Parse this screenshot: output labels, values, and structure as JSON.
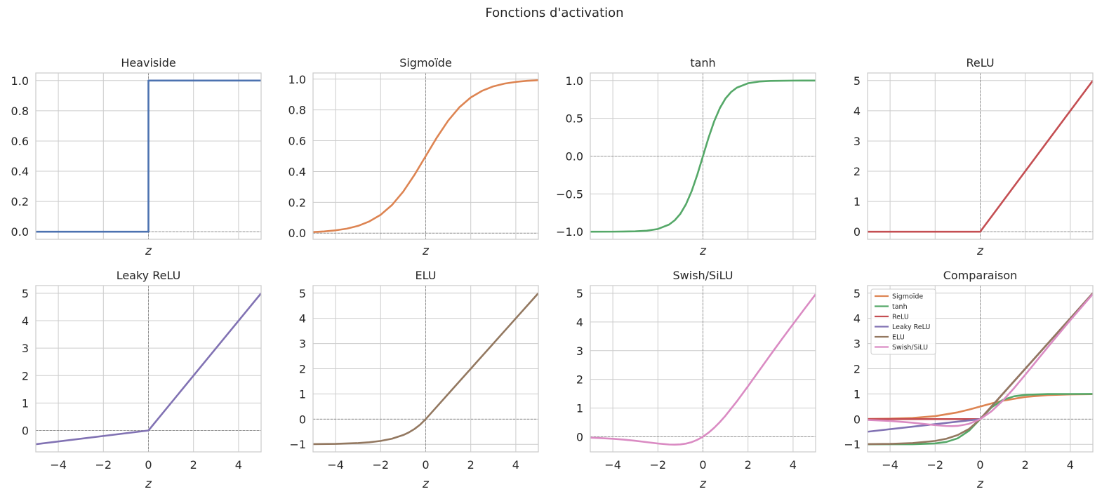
{
  "figure": {
    "title": "Fonctions d'activation"
  },
  "colors": {
    "Heaviside": "#4c72b0",
    "Sigmoïde": "#dd8452",
    "tanh": "#55a868",
    "ReLU": "#c44e52",
    "Leaky ReLU": "#8172b3",
    "ELU": "#937860",
    "Swish/SiLU": "#da8bc3"
  },
  "chart_data": [
    {
      "type": "line",
      "title": "Heaviside",
      "xlabel": "z",
      "ylabel": "",
      "xlim": [
        -5,
        5
      ],
      "ylim": [
        -0.05,
        1.05
      ],
      "xticks": [
        -4,
        -2,
        0,
        2,
        4
      ],
      "show_xtick_labels": false,
      "yticks": [
        0.0,
        0.2,
        0.4,
        0.6,
        0.8,
        1.0
      ],
      "ytick_labels": [
        "0.0",
        "0.2",
        "0.4",
        "0.6",
        "0.8",
        "1.0"
      ],
      "series": [
        {
          "name": "Heaviside",
          "x": [
            -5,
            0,
            0,
            5
          ],
          "y": [
            0,
            0,
            1,
            1
          ]
        }
      ]
    },
    {
      "type": "line",
      "title": "Sigmoïde",
      "xlabel": "z",
      "ylabel": "",
      "xlim": [
        -5,
        5
      ],
      "ylim": [
        -0.04,
        1.04
      ],
      "xticks": [
        -4,
        -2,
        0,
        2,
        4
      ],
      "show_xtick_labels": false,
      "yticks": [
        0.0,
        0.2,
        0.4,
        0.6,
        0.8,
        1.0
      ],
      "ytick_labels": [
        "0.0",
        "0.2",
        "0.4",
        "0.6",
        "0.8",
        "1.0"
      ],
      "series": [
        {
          "name": "Sigmoïde",
          "x": [
            -5,
            -4.5,
            -4,
            -3.5,
            -3,
            -2.5,
            -2,
            -1.5,
            -1,
            -0.5,
            0,
            0.5,
            1,
            1.5,
            2,
            2.5,
            3,
            3.5,
            4,
            4.5,
            5
          ],
          "y": [
            0.007,
            0.011,
            0.018,
            0.029,
            0.047,
            0.076,
            0.119,
            0.182,
            0.269,
            0.378,
            0.5,
            0.622,
            0.731,
            0.818,
            0.881,
            0.924,
            0.953,
            0.971,
            0.982,
            0.989,
            0.993
          ]
        }
      ]
    },
    {
      "type": "line",
      "title": "tanh",
      "xlabel": "z",
      "ylabel": "",
      "xlim": [
        -5,
        5
      ],
      "ylim": [
        -1.1,
        1.1
      ],
      "xticks": [
        -4,
        -2,
        0,
        2,
        4
      ],
      "show_xtick_labels": false,
      "yticks": [
        -1.0,
        -0.5,
        0.0,
        0.5,
        1.0
      ],
      "ytick_labels": [
        "−1.0",
        "−0.5",
        "0.0",
        "0.5",
        "1.0"
      ],
      "series": [
        {
          "name": "tanh",
          "x": [
            -5,
            -4,
            -3,
            -2.5,
            -2,
            -1.5,
            -1.25,
            -1,
            -0.75,
            -0.5,
            -0.25,
            0,
            0.25,
            0.5,
            0.75,
            1,
            1.25,
            1.5,
            2,
            2.5,
            3,
            4,
            5
          ],
          "y": [
            -1.0,
            -0.999,
            -0.995,
            -0.987,
            -0.964,
            -0.905,
            -0.848,
            -0.762,
            -0.635,
            -0.462,
            -0.245,
            0,
            0.245,
            0.462,
            0.635,
            0.762,
            0.848,
            0.905,
            0.964,
            0.987,
            0.995,
            0.999,
            1.0
          ]
        }
      ]
    },
    {
      "type": "line",
      "title": "ReLU",
      "xlabel": "z",
      "ylabel": "",
      "xlim": [
        -5,
        5
      ],
      "ylim": [
        -0.25,
        5.25
      ],
      "xticks": [
        -4,
        -2,
        0,
        2,
        4
      ],
      "show_xtick_labels": false,
      "yticks": [
        0,
        1,
        2,
        3,
        4,
        5
      ],
      "ytick_labels": [
        "0",
        "1",
        "2",
        "3",
        "4",
        "5"
      ],
      "series": [
        {
          "name": "ReLU",
          "x": [
            -5,
            0,
            5
          ],
          "y": [
            0,
            0,
            5
          ]
        }
      ]
    },
    {
      "type": "line",
      "title": "Leaky ReLU",
      "xlabel": "z",
      "ylabel": "",
      "xlim": [
        -5,
        5
      ],
      "ylim": [
        -0.78,
        5.28
      ],
      "xticks": [
        -4,
        -2,
        0,
        2,
        4
      ],
      "show_xtick_labels": true,
      "xtick_labels": [
        "−4",
        "−2",
        "0",
        "2",
        "4"
      ],
      "yticks": [
        0,
        1,
        2,
        3,
        4,
        5
      ],
      "ytick_labels": [
        "0",
        "1",
        "2",
        "3",
        "4",
        "5"
      ],
      "series": [
        {
          "name": "Leaky ReLU",
          "x": [
            -5,
            0,
            5
          ],
          "y": [
            -0.5,
            0,
            5
          ]
        }
      ]
    },
    {
      "type": "line",
      "title": "ELU",
      "xlabel": "z",
      "ylabel": "",
      "xlim": [
        -5,
        5
      ],
      "ylim": [
        -1.3,
        5.3
      ],
      "xticks": [
        -4,
        -2,
        0,
        2,
        4
      ],
      "show_xtick_labels": true,
      "xtick_labels": [
        "−4",
        "−2",
        "0",
        "2",
        "4"
      ],
      "yticks": [
        -1,
        0,
        1,
        2,
        3,
        4,
        5
      ],
      "ytick_labels": [
        "−1",
        "0",
        "1",
        "2",
        "3",
        "4",
        "5"
      ],
      "series": [
        {
          "name": "ELU",
          "x": [
            -5,
            -4,
            -3,
            -2.5,
            -2,
            -1.5,
            -1,
            -0.75,
            -0.5,
            -0.25,
            0,
            1,
            2,
            3,
            4,
            5
          ],
          "y": [
            -0.993,
            -0.982,
            -0.95,
            -0.918,
            -0.865,
            -0.777,
            -0.632,
            -0.528,
            -0.393,
            -0.221,
            0,
            1,
            2,
            3,
            4,
            5
          ]
        }
      ]
    },
    {
      "type": "line",
      "title": "Swish/SiLU",
      "xlabel": "z",
      "ylabel": "",
      "xlim": [
        -5,
        5
      ],
      "ylim": [
        -0.53,
        5.27
      ],
      "xticks": [
        -4,
        -2,
        0,
        2,
        4
      ],
      "show_xtick_labels": true,
      "xtick_labels": [
        "−4",
        "−2",
        "0",
        "2",
        "4"
      ],
      "yticks": [
        0,
        1,
        2,
        3,
        4,
        5
      ],
      "ytick_labels": [
        "0",
        "1",
        "2",
        "3",
        "4",
        "5"
      ],
      "series": [
        {
          "name": "Swish/SiLU",
          "x": [
            -5,
            -4.5,
            -4,
            -3.5,
            -3,
            -2.5,
            -2,
            -1.5,
            -1.25,
            -1,
            -0.75,
            -0.5,
            -0.25,
            0,
            0.25,
            0.5,
            0.75,
            1,
            1.5,
            2,
            2.5,
            3,
            3.5,
            4,
            4.5,
            5
          ],
          "y": [
            -0.033,
            -0.05,
            -0.072,
            -0.103,
            -0.142,
            -0.19,
            -0.238,
            -0.273,
            -0.278,
            -0.269,
            -0.241,
            -0.189,
            -0.109,
            0,
            0.141,
            0.311,
            0.509,
            0.731,
            1.227,
            1.762,
            2.31,
            2.858,
            3.398,
            3.928,
            4.45,
            4.967
          ]
        }
      ]
    },
    {
      "type": "line",
      "title": "Comparaison",
      "xlabel": "z",
      "ylabel": "",
      "xlim": [
        -5,
        5
      ],
      "ylim": [
        -1.3,
        5.3
      ],
      "xticks": [
        -4,
        -2,
        0,
        2,
        4
      ],
      "show_xtick_labels": true,
      "xtick_labels": [
        "−4",
        "−2",
        "0",
        "2",
        "4"
      ],
      "yticks": [
        -1,
        0,
        1,
        2,
        3,
        4,
        5
      ],
      "ytick_labels": [
        "−1",
        "0",
        "1",
        "2",
        "3",
        "4",
        "5"
      ],
      "legend": "top-left",
      "series": [
        {
          "name": "Sigmoïde",
          "x": [
            -5,
            -4,
            -3,
            -2,
            -1,
            -0.5,
            0,
            0.5,
            1,
            2,
            3,
            4,
            5
          ],
          "y": [
            0.007,
            0.018,
            0.047,
            0.119,
            0.269,
            0.378,
            0.5,
            0.622,
            0.731,
            0.881,
            0.953,
            0.982,
            0.993
          ]
        },
        {
          "name": "tanh",
          "x": [
            -5,
            -3,
            -2,
            -1.5,
            -1,
            -0.5,
            0,
            0.5,
            1,
            1.5,
            2,
            3,
            5
          ],
          "y": [
            -1.0,
            -0.995,
            -0.964,
            -0.905,
            -0.762,
            -0.462,
            0,
            0.462,
            0.762,
            0.905,
            0.964,
            0.995,
            1.0
          ]
        },
        {
          "name": "ReLU",
          "x": [
            -5,
            0,
            5
          ],
          "y": [
            0,
            0,
            5
          ]
        },
        {
          "name": "Leaky ReLU",
          "x": [
            -5,
            0,
            5
          ],
          "y": [
            -0.5,
            0,
            5
          ]
        },
        {
          "name": "ELU",
          "x": [
            -5,
            -4,
            -3,
            -2,
            -1.5,
            -1,
            -0.5,
            0,
            5
          ],
          "y": [
            -0.993,
            -0.982,
            -0.95,
            -0.865,
            -0.777,
            -0.632,
            -0.393,
            0,
            5
          ]
        },
        {
          "name": "Swish/SiLU",
          "x": [
            -5,
            -4,
            -3,
            -2,
            -1.5,
            -1.25,
            -1,
            -0.5,
            0,
            0.5,
            1,
            1.5,
            2,
            3,
            4,
            5
          ],
          "y": [
            -0.033,
            -0.072,
            -0.142,
            -0.238,
            -0.273,
            -0.278,
            -0.269,
            -0.189,
            0,
            0.311,
            0.731,
            1.227,
            1.762,
            2.858,
            3.928,
            4.967
          ]
        }
      ]
    }
  ]
}
